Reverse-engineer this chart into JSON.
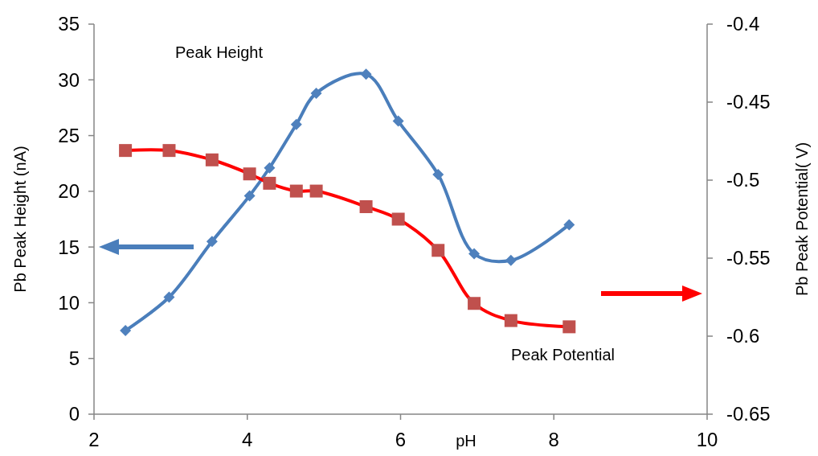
{
  "chart_data": {
    "type": "line",
    "xlabel": "pH",
    "ylabel": "Pb Peak Height (nA)",
    "y2label": "Pb Peak Potential( V)",
    "xlim": [
      2,
      10
    ],
    "xticks": [
      2,
      4,
      6,
      8,
      10
    ],
    "ylim": [
      0,
      35
    ],
    "yticks": [
      0,
      5,
      10,
      15,
      20,
      25,
      30,
      35
    ],
    "y2lim": [
      -0.65,
      -0.4
    ],
    "y2ticks": [
      -0.65,
      -0.6,
      -0.55,
      -0.5,
      -0.45,
      -0.4
    ],
    "grid": false,
    "annotations": [
      "Peak Height",
      "Peak Potential"
    ],
    "series": [
      {
        "color": "#4a7ebb",
        "marker": "diamond",
        "x": [
          2.41,
          2.98,
          3.54,
          4.03,
          4.29,
          4.64,
          4.9,
          5.55,
          5.97,
          6.49,
          6.96,
          7.44,
          8.2
        ],
        "values": [
          7.5,
          10.5,
          15.5,
          19.6,
          22.1,
          26,
          28.8,
          30.5,
          26.3,
          21.5,
          14.4,
          13.8,
          17
        ]
      },
      {
        "color": "#ff0000",
        "marker": "square",
        "axis": "y2",
        "x": [
          2.41,
          2.98,
          3.54,
          4.03,
          4.29,
          4.64,
          4.9,
          5.55,
          5.97,
          6.49,
          6.96,
          7.44,
          8.2
        ],
        "values": [
          -0.481,
          -0.481,
          -0.487,
          -0.496,
          -0.502,
          -0.507,
          -0.507,
          -0.517,
          -0.525,
          -0.545,
          -0.579,
          -0.59,
          -0.594
        ]
      }
    ]
  }
}
